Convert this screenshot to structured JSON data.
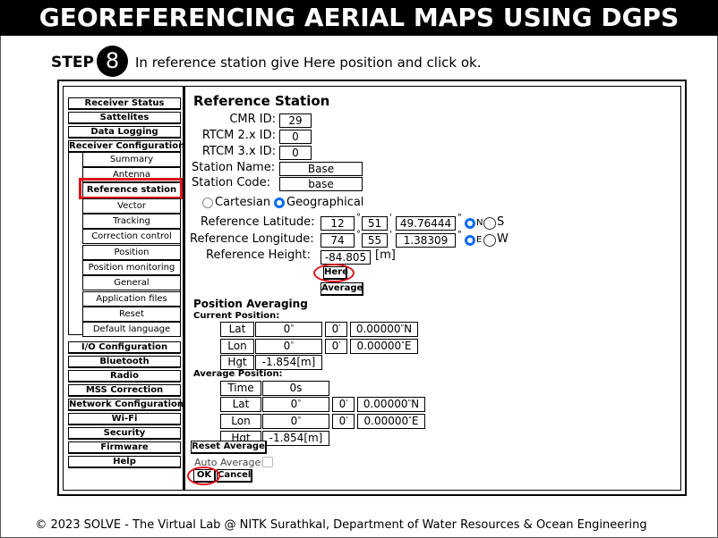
{
  "header": {
    "title": "GEOREFERENCING AERIAL MAPS USING DGPS"
  },
  "step": {
    "label": "STEP",
    "number": "8",
    "instruction": "In reference station give Here position and click ok."
  },
  "symbols": {
    "degree": "°",
    "minute": "'",
    "second": "\""
  },
  "sidebar": {
    "top": [
      "Receiver Status",
      "Sattelites",
      "Data Logging"
    ],
    "group": "Receiver Configuration",
    "submenu": [
      "Summary",
      "Antenna",
      "Reference station",
      "Vector",
      "Tracking",
      "Correction control",
      "Position",
      "Position monitoring",
      "General",
      "Application files",
      "Reset",
      "Default language"
    ],
    "bottom": [
      "I/O Configuration",
      "Bluetooth",
      "Radio",
      "MSS Correction",
      "Network Configuration",
      "Wi-Fi",
      "Security",
      "Firmware",
      "Help"
    ]
  },
  "panel": {
    "title": "Reference Station",
    "fields": [
      {
        "label": "CMR ID:",
        "value": "29"
      },
      {
        "label": "RTCM 2.x ID:",
        "value": "0"
      },
      {
        "label": "RTCM 3.x ID:",
        "value": "0"
      },
      {
        "label": "Station Name:",
        "value": "Base"
      },
      {
        "label": "Station Code:",
        "value": "base"
      }
    ],
    "coord_options": [
      "Cartesian",
      "Geographical"
    ],
    "latitude": {
      "label": "Reference Latitude:",
      "deg": "12",
      "min": "51",
      "sec": "49.76444",
      "hemis": [
        "N",
        "S"
      ]
    },
    "longitude": {
      "label": "Reference Longitude:",
      "deg": "74",
      "min": "55",
      "sec": "1.38309",
      "hemis": [
        "E",
        "W"
      ]
    },
    "height": {
      "label": "Reference Height:",
      "value": "-84.805",
      "unit": "[m]"
    },
    "buttons": {
      "here": "Here",
      "average": "Average"
    },
    "averaging": {
      "title": "Position Averaging",
      "current": {
        "title": "Current Position:",
        "lat": {
          "label": "Lat",
          "deg": "0",
          "min": "0",
          "sec": "0.00000",
          "hemi": "N"
        },
        "lon": {
          "label": "Lon",
          "deg": "0",
          "min": "0",
          "sec": "0.00000",
          "hemi": "E"
        },
        "hgt": {
          "label": "Hgt",
          "value": "-1.854",
          "unit": "[m]"
        }
      },
      "average": {
        "title": "Average Position:",
        "time": {
          "label": "Time",
          "value": "0s"
        },
        "lat": {
          "label": "Lat",
          "deg": "0",
          "min": "0",
          "sec": "0.00000",
          "hemi": "N"
        },
        "lon": {
          "label": "Lon",
          "deg": "0",
          "min": "0",
          "sec": "0.00000",
          "hemi": "E"
        },
        "hgt": {
          "label": "Hgt",
          "value": "-1.854",
          "unit": "[m]"
        }
      },
      "reset": "Reset Average",
      "auto": "Auto Average:"
    },
    "ok": "OK",
    "cancel": "Cancel"
  },
  "footer": "© 2023 SOLVE - The Virtual Lab @ NITK Surathkal, Department of Water Resources & Ocean Engineering"
}
